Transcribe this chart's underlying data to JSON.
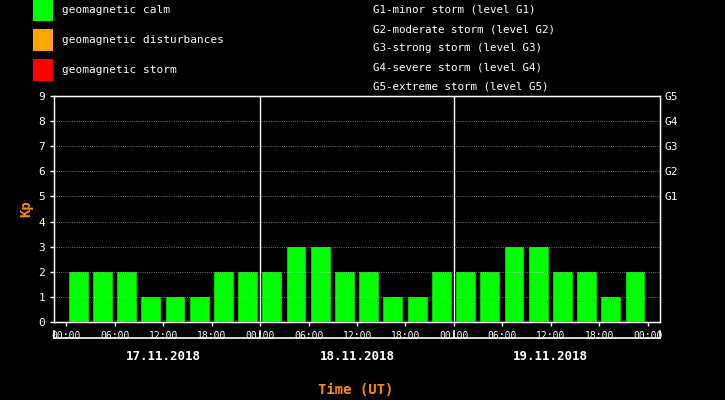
{
  "background_color": "#000000",
  "plot_bg_color": "#000000",
  "bar_color": "#00ff00",
  "bar_edge_color": "#000000",
  "grid_color": "#ffffff",
  "axis_color": "#ffffff",
  "ylabel": "Kp",
  "ylabel_color": "#ff8c00",
  "xlabel": "Time (UT)",
  "xlabel_color": "#ff8c00",
  "ylim": [
    0,
    9
  ],
  "yticks": [
    0,
    1,
    2,
    3,
    4,
    5,
    6,
    7,
    8,
    9
  ],
  "right_labels": [
    "G1",
    "G2",
    "G3",
    "G4",
    "G5"
  ],
  "right_label_yvals": [
    5,
    6,
    7,
    8,
    9
  ],
  "day_labels": [
    "17.11.2018",
    "18.11.2018",
    "19.11.2018"
  ],
  "day_label_color": "#ffffff",
  "xtick_labels": [
    "00:00",
    "06:00",
    "12:00",
    "18:00",
    "00:00",
    "06:00",
    "12:00",
    "18:00",
    "00:00",
    "06:00",
    "12:00",
    "18:00",
    "00:00"
  ],
  "values_day1": [
    2,
    2,
    2,
    1,
    1,
    1,
    2,
    2
  ],
  "values_day2": [
    2,
    3,
    3,
    2,
    2,
    1,
    1,
    2
  ],
  "values_day3": [
    2,
    2,
    3,
    3,
    2,
    2,
    1,
    2
  ],
  "legend_items": [
    {
      "label": "geomagnetic calm",
      "color": "#00ff00"
    },
    {
      "label": "geomagnetic disturbances",
      "color": "#ffa500"
    },
    {
      "label": "geomagnetic storm",
      "color": "#ff0000"
    }
  ],
  "legend_text_color": "#ffffff",
  "right_legend_lines": [
    "G1-minor storm (level G1)",
    "G2-moderate storm (level G2)",
    "G3-strong storm (level G3)",
    "G4-severe storm (level G4)",
    "G5-extreme storm (level G5)"
  ],
  "right_legend_color": "#ffffff",
  "divider_color": "#ffffff",
  "tick_label_color": "#ffffff",
  "font_family": "monospace"
}
